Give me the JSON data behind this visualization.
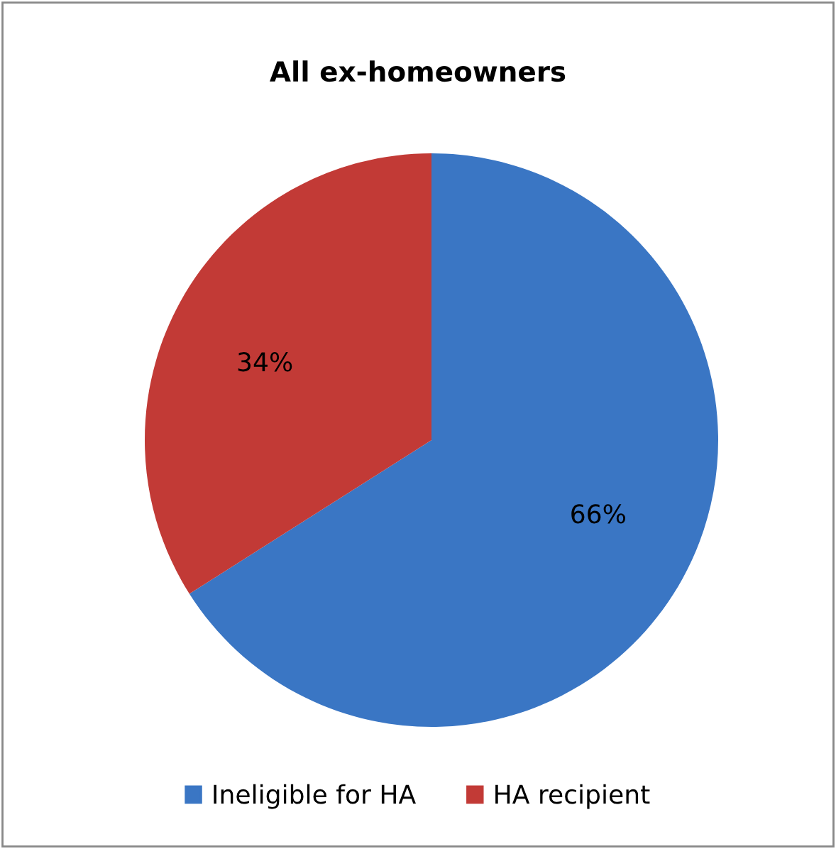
{
  "chart_data": {
    "type": "pie",
    "title": "All ex-homeowners",
    "categories": [
      "Ineligible for HA",
      "HA recipient"
    ],
    "values": [
      66,
      34
    ],
    "colors": [
      "#3a76c4",
      "#c23a36"
    ],
    "value_labels": [
      "66%",
      "34%"
    ],
    "legend": "bottom"
  }
}
